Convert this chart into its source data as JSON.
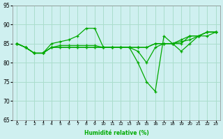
{
  "xlabel": "Humidité relative (%)",
  "ylabel": "",
  "background_color": "#cff0f0",
  "grid_color": "#aaddcc",
  "line_color": "#00aa00",
  "xlim_min": -0.5,
  "xlim_max": 23.5,
  "ylim": [
    65,
    95
  ],
  "yticks": [
    65,
    70,
    75,
    80,
    85,
    90,
    95
  ],
  "xticks": [
    0,
    1,
    2,
    3,
    4,
    5,
    6,
    7,
    8,
    9,
    10,
    11,
    12,
    13,
    14,
    15,
    16,
    17,
    18,
    19,
    20,
    21,
    22,
    23
  ],
  "series": [
    [
      85,
      84,
      82.5,
      82.5,
      85,
      85.5,
      86,
      87,
      89,
      89,
      84,
      84,
      84,
      84,
      84,
      84,
      85,
      85,
      85,
      86,
      87,
      87,
      88,
      88
    ],
    [
      85,
      84,
      82.5,
      82.5,
      84,
      84.5,
      84.5,
      84.5,
      84.5,
      84.5,
      84,
      84,
      84,
      84,
      84,
      84,
      85,
      85,
      85,
      85.5,
      86,
      87,
      88,
      88
    ],
    [
      85,
      84,
      82.5,
      82.5,
      84,
      84,
      84,
      84,
      84,
      84,
      84,
      84,
      84,
      84,
      83,
      80,
      84,
      85,
      85,
      85,
      87,
      87,
      88,
      88
    ],
    [
      85,
      84,
      82.5,
      82.5,
      84,
      84,
      84,
      84,
      84,
      84,
      84,
      84,
      84,
      84,
      80,
      75,
      72.5,
      87,
      85,
      83,
      85,
      87,
      87,
      88
    ]
  ]
}
